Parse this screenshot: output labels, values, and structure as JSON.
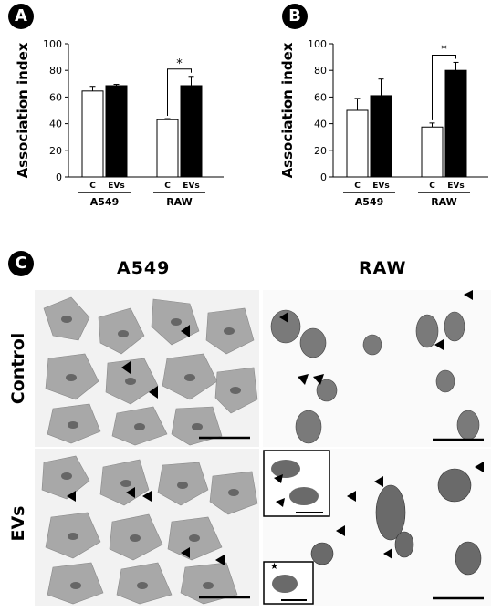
{
  "panels": {
    "A": {
      "label": "A"
    },
    "B": {
      "label": "B"
    },
    "C": {
      "label": "C"
    }
  },
  "chart_data": [
    {
      "id": "A",
      "type": "bar",
      "ylabel": "Association index",
      "ylim": [
        0,
        100
      ],
      "yticks": [
        0,
        20,
        40,
        60,
        80,
        100
      ],
      "categories": [
        "C",
        "EVs",
        "C",
        "EVs"
      ],
      "groups": [
        "A549",
        "RAW"
      ],
      "values": [
        64.5,
        68.5,
        43,
        68.5
      ],
      "errors": [
        3.5,
        1,
        0.8,
        7
      ],
      "fills": [
        "#ffffff",
        "#000000",
        "#ffffff",
        "#000000"
      ],
      "significance": [
        {
          "between": [
            2,
            3
          ],
          "label": "*"
        }
      ],
      "grid": false
    },
    {
      "id": "B",
      "type": "bar",
      "ylabel": "Association index",
      "ylim": [
        0,
        100
      ],
      "yticks": [
        0,
        20,
        40,
        60,
        80,
        100
      ],
      "categories": [
        "C",
        "EVs",
        "C",
        "EVs"
      ],
      "groups": [
        "A549",
        "RAW"
      ],
      "values": [
        50,
        61,
        37.5,
        80
      ],
      "errors": [
        9,
        12.5,
        3,
        6
      ],
      "fills": [
        "#ffffff",
        "#000000",
        "#ffffff",
        "#000000"
      ],
      "significance": [
        {
          "between": [
            2,
            3
          ],
          "label": "*"
        }
      ],
      "grid": false
    }
  ],
  "micrographs": {
    "columns": [
      "A549",
      "RAW"
    ],
    "rows": [
      "Control",
      "EVs"
    ],
    "inset_star": "★"
  }
}
